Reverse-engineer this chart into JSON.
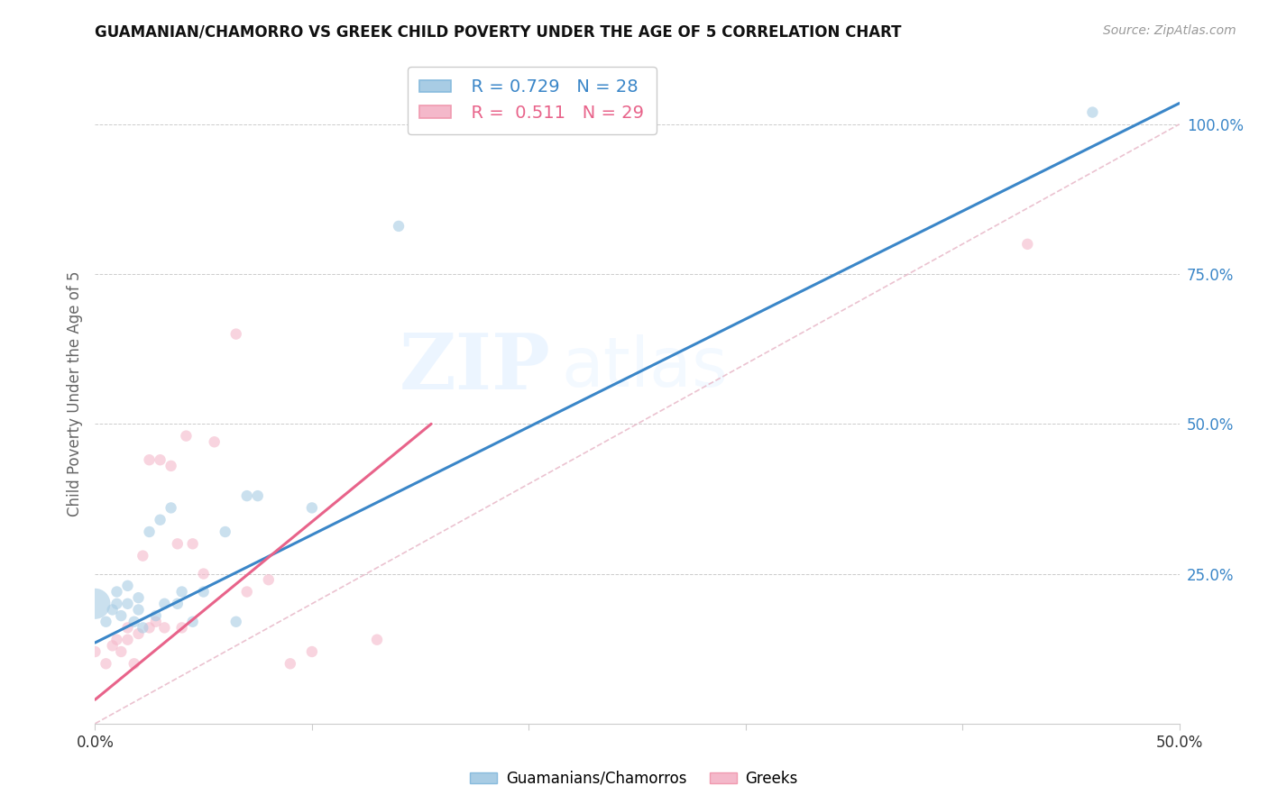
{
  "title": "GUAMANIAN/CHAMORRO VS GREEK CHILD POVERTY UNDER THE AGE OF 5 CORRELATION CHART",
  "source": "Source: ZipAtlas.com",
  "ylabel": "Child Poverty Under the Age of 5",
  "xlim": [
    0.0,
    0.5
  ],
  "ylim": [
    0.0,
    1.1
  ],
  "legend_blue_r": "R = 0.729",
  "legend_blue_n": "N = 28",
  "legend_pink_r": "R =  0.511",
  "legend_pink_n": "N = 29",
  "blue_color": "#a8cce4",
  "pink_color": "#f4b8ca",
  "blue_line_color": "#3a86c8",
  "pink_line_color": "#e8638a",
  "diagonal_color": "#e8b8c8",
  "watermark_zip": "ZIP",
  "watermark_atlas": "atlas",
  "guamanian_x": [
    0.0,
    0.005,
    0.008,
    0.01,
    0.01,
    0.012,
    0.015,
    0.015,
    0.018,
    0.02,
    0.02,
    0.022,
    0.025,
    0.028,
    0.03,
    0.032,
    0.035,
    0.038,
    0.04,
    0.045,
    0.05,
    0.06,
    0.065,
    0.07,
    0.075,
    0.1,
    0.14,
    0.46
  ],
  "guamanian_y": [
    0.2,
    0.17,
    0.19,
    0.2,
    0.22,
    0.18,
    0.2,
    0.23,
    0.17,
    0.19,
    0.21,
    0.16,
    0.32,
    0.18,
    0.34,
    0.2,
    0.36,
    0.2,
    0.22,
    0.17,
    0.22,
    0.32,
    0.17,
    0.38,
    0.38,
    0.36,
    0.83,
    1.02
  ],
  "guamanian_sizes": [
    600,
    80,
    80,
    80,
    80,
    80,
    80,
    80,
    80,
    80,
    80,
    80,
    80,
    80,
    80,
    80,
    80,
    80,
    80,
    80,
    80,
    80,
    80,
    80,
    80,
    80,
    80,
    80
  ],
  "greek_x": [
    0.0,
    0.005,
    0.008,
    0.01,
    0.012,
    0.015,
    0.015,
    0.018,
    0.02,
    0.022,
    0.025,
    0.025,
    0.028,
    0.03,
    0.032,
    0.035,
    0.038,
    0.04,
    0.042,
    0.045,
    0.05,
    0.055,
    0.065,
    0.07,
    0.08,
    0.09,
    0.1,
    0.13,
    0.43
  ],
  "greek_y": [
    0.12,
    0.1,
    0.13,
    0.14,
    0.12,
    0.14,
    0.16,
    0.1,
    0.15,
    0.28,
    0.16,
    0.44,
    0.17,
    0.44,
    0.16,
    0.43,
    0.3,
    0.16,
    0.48,
    0.3,
    0.25,
    0.47,
    0.65,
    0.22,
    0.24,
    0.1,
    0.12,
    0.14,
    0.8
  ],
  "greek_sizes": [
    80,
    80,
    80,
    80,
    80,
    80,
    80,
    80,
    80,
    80,
    80,
    80,
    80,
    80,
    80,
    80,
    80,
    80,
    80,
    80,
    80,
    80,
    80,
    80,
    80,
    80,
    80,
    80,
    80
  ],
  "blue_line_x0": 0.0,
  "blue_line_y0": 0.135,
  "blue_line_x1": 0.5,
  "blue_line_y1": 1.035,
  "pink_line_x0": 0.0,
  "pink_line_y0": 0.04,
  "pink_line_x1": 0.155,
  "pink_line_y1": 0.5
}
